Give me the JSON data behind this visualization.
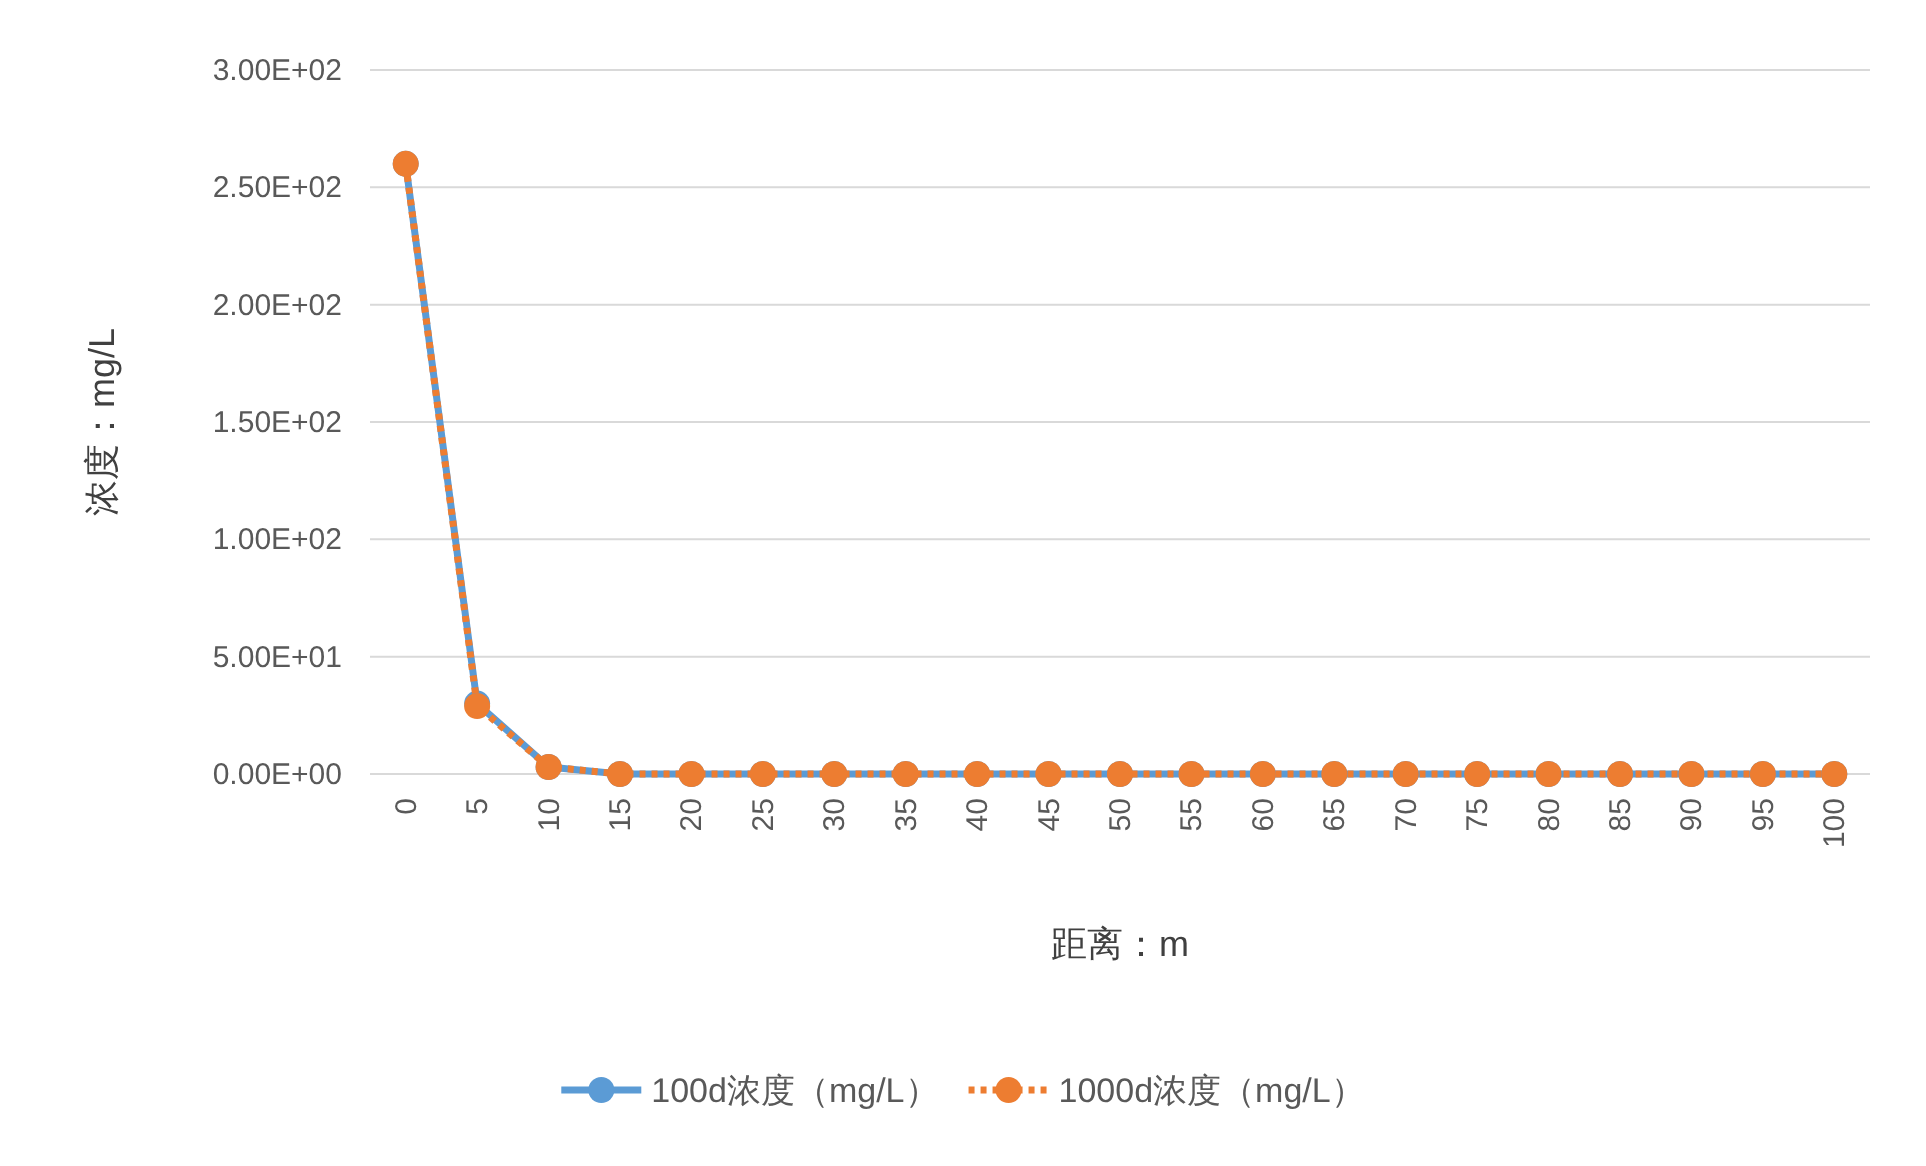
{
  "chart_data": {
    "type": "line",
    "xlabel": "距离：m",
    "ylabel": "浓度：mg/L",
    "categories": [
      "0",
      "5",
      "10",
      "15",
      "20",
      "25",
      "30",
      "35",
      "40",
      "45",
      "50",
      "55",
      "60",
      "65",
      "70",
      "75",
      "80",
      "85",
      "90",
      "95",
      "100"
    ],
    "series": [
      {
        "name": "100d浓度（mg/L）",
        "color": "#5b9bd5",
        "line_style": "solid",
        "values": [
          260,
          30,
          3,
          0,
          0,
          0,
          0,
          0,
          0,
          0,
          0,
          0,
          0,
          0,
          0,
          0,
          0,
          0,
          0,
          0,
          0
        ]
      },
      {
        "name": "1000d浓度（mg/L）",
        "color": "#ed7d31",
        "line_style": "dotted",
        "values": [
          260,
          29,
          3,
          0,
          0,
          0,
          0,
          0,
          0,
          0,
          0,
          0,
          0,
          0,
          0,
          0,
          0,
          0,
          0,
          0,
          0
        ]
      }
    ],
    "ylim": [
      0,
      300
    ],
    "yticks": [
      {
        "value": 0,
        "label": "0.00E+00"
      },
      {
        "value": 50,
        "label": "5.00E+01"
      },
      {
        "value": 100,
        "label": "1.00E+02"
      },
      {
        "value": 150,
        "label": "1.50E+02"
      },
      {
        "value": 200,
        "label": "2.00E+02"
      },
      {
        "value": 250,
        "label": "2.50E+02"
      },
      {
        "value": 300,
        "label": "3.00E+02"
      }
    ],
    "grid": "y",
    "legend": "bottom",
    "marker": "circle"
  }
}
